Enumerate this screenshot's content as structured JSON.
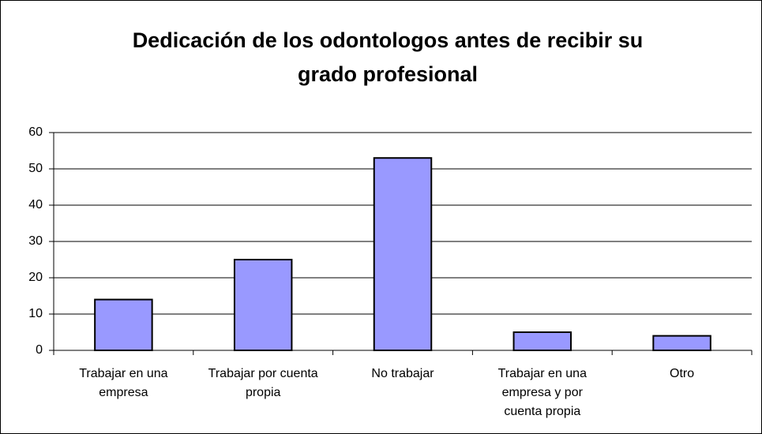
{
  "chart_data": {
    "type": "bar",
    "title": "Dedicación de los odontologos antes de recibir su grado profesional",
    "categories": [
      "Trabajar en una empresa",
      "Trabajar por cuenta propia",
      "No trabajar",
      "Trabajar en una empresa y por cuenta propia",
      "Otro"
    ],
    "values": [
      14,
      25,
      53,
      5,
      4
    ],
    "color": "#9999ff",
    "ylim": [
      0,
      60
    ],
    "yticks": [
      0,
      10,
      20,
      30,
      40,
      50,
      60
    ],
    "grid": true
  }
}
